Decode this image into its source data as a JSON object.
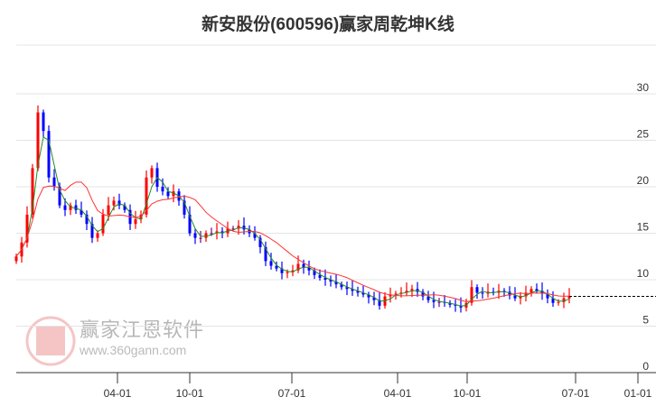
{
  "chart_data": {
    "type": "candlestick",
    "title": "新安股份(600596)赢家周乾坤K线",
    "ylim": [
      0,
      35
    ],
    "yticks": [
      0,
      5,
      10,
      15,
      20,
      25,
      30
    ],
    "xticks": [
      "04-01",
      "10-01",
      "07-01",
      "04-01",
      "10-01",
      "07-01",
      "01-01"
    ],
    "closes": [
      12.5,
      14,
      17,
      22,
      28,
      26,
      21,
      20,
      18,
      17.5,
      18,
      17.5,
      17,
      16,
      14.5,
      15,
      17,
      18,
      18.5,
      18,
      17.5,
      16,
      16.5,
      17,
      21,
      22,
      20,
      19.5,
      19,
      19.5,
      18.5,
      17,
      15,
      14.5,
      14.5,
      15,
      15,
      15.2,
      15,
      15.5,
      15.5,
      15.8,
      15.4,
      15,
      14.5,
      13.5,
      12,
      11.5,
      11.2,
      10.7,
      10.8,
      11,
      11.7,
      11.3,
      11,
      10.5,
      10.2,
      10,
      9.8,
      9.5,
      9.2,
      9,
      8.8,
      8.6,
      8.4,
      8.1,
      7.8,
      7.2,
      8.2,
      8.4,
      8.5,
      8.6,
      8.8,
      9,
      8.7,
      8.2,
      7.8,
      7.6,
      7.6,
      7.5,
      7.3,
      7.2,
      7,
      7.5,
      9.2,
      8.6,
      8.5,
      8.7,
      8.6,
      8.8,
      8.7,
      8.3,
      8,
      8.2,
      8.6,
      9,
      8.8,
      8.5,
      8,
      7.5,
      7.6,
      8,
      8.2
    ],
    "last_price": 8.2,
    "colors": {
      "up": "#ff0000",
      "down": "#0000ff",
      "flat": "#800080",
      "ma_short": "#228b22",
      "ma_long": "#ff3333"
    }
  },
  "watermark": {
    "name": "赢家江恩软件",
    "url": "www.360gann.com",
    "seal": "江赢恩家"
  }
}
